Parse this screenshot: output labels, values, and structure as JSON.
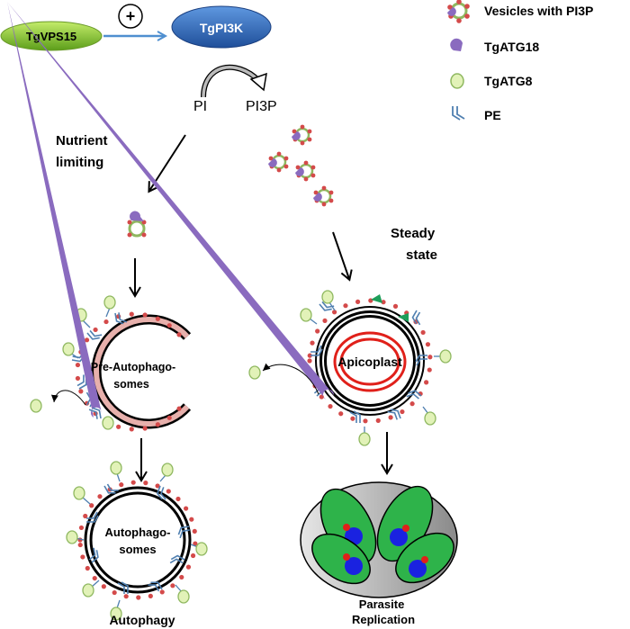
{
  "proteins": {
    "vps15": "TgVPS15",
    "pi3k": "TgPI3K",
    "plus": "+"
  },
  "reaction": {
    "substrate": "PI",
    "product": "PI3P"
  },
  "legend": [
    {
      "icon": "vesicle-pi3p-icon",
      "label": "Vesicles with PI3P"
    },
    {
      "icon": "atg18-icon",
      "label": "TgATG18"
    },
    {
      "icon": "atg8-icon",
      "label": "TgATG8"
    },
    {
      "icon": "pe-icon",
      "label": "PE"
    }
  ],
  "conditions": {
    "nutrient": [
      "Nutrient",
      "limiting"
    ],
    "steady": [
      "Steady",
      "state"
    ]
  },
  "structures": {
    "pre_autophagosome": [
      "Pre-Autophago-",
      "somes"
    ],
    "autophagosome": [
      "Autophago-",
      "somes"
    ],
    "apicoplast": "Apicoplast"
  },
  "outcomes": {
    "autophagy": "Autophagy",
    "replication": [
      "Parasite",
      "Replication"
    ]
  },
  "colors": {
    "vps15_fill": "#7fbf26",
    "pi3k_fill": "#2b67b8",
    "atg18": "#8a6bbf",
    "atg8_fill": "#e2f2b8",
    "atg8_stroke": "#8fb860",
    "pi3p_dot": "#d44a4a",
    "pe": "#4f7fb0",
    "apicoplast_ring": "#e0201a",
    "pre_autophagosome_ring": "#e7b0ac",
    "parasite": "#2eb34a",
    "nucleus": "#1a22e0",
    "vacuole": "#d4d4d4",
    "green_marker": "#1e9e5a"
  }
}
